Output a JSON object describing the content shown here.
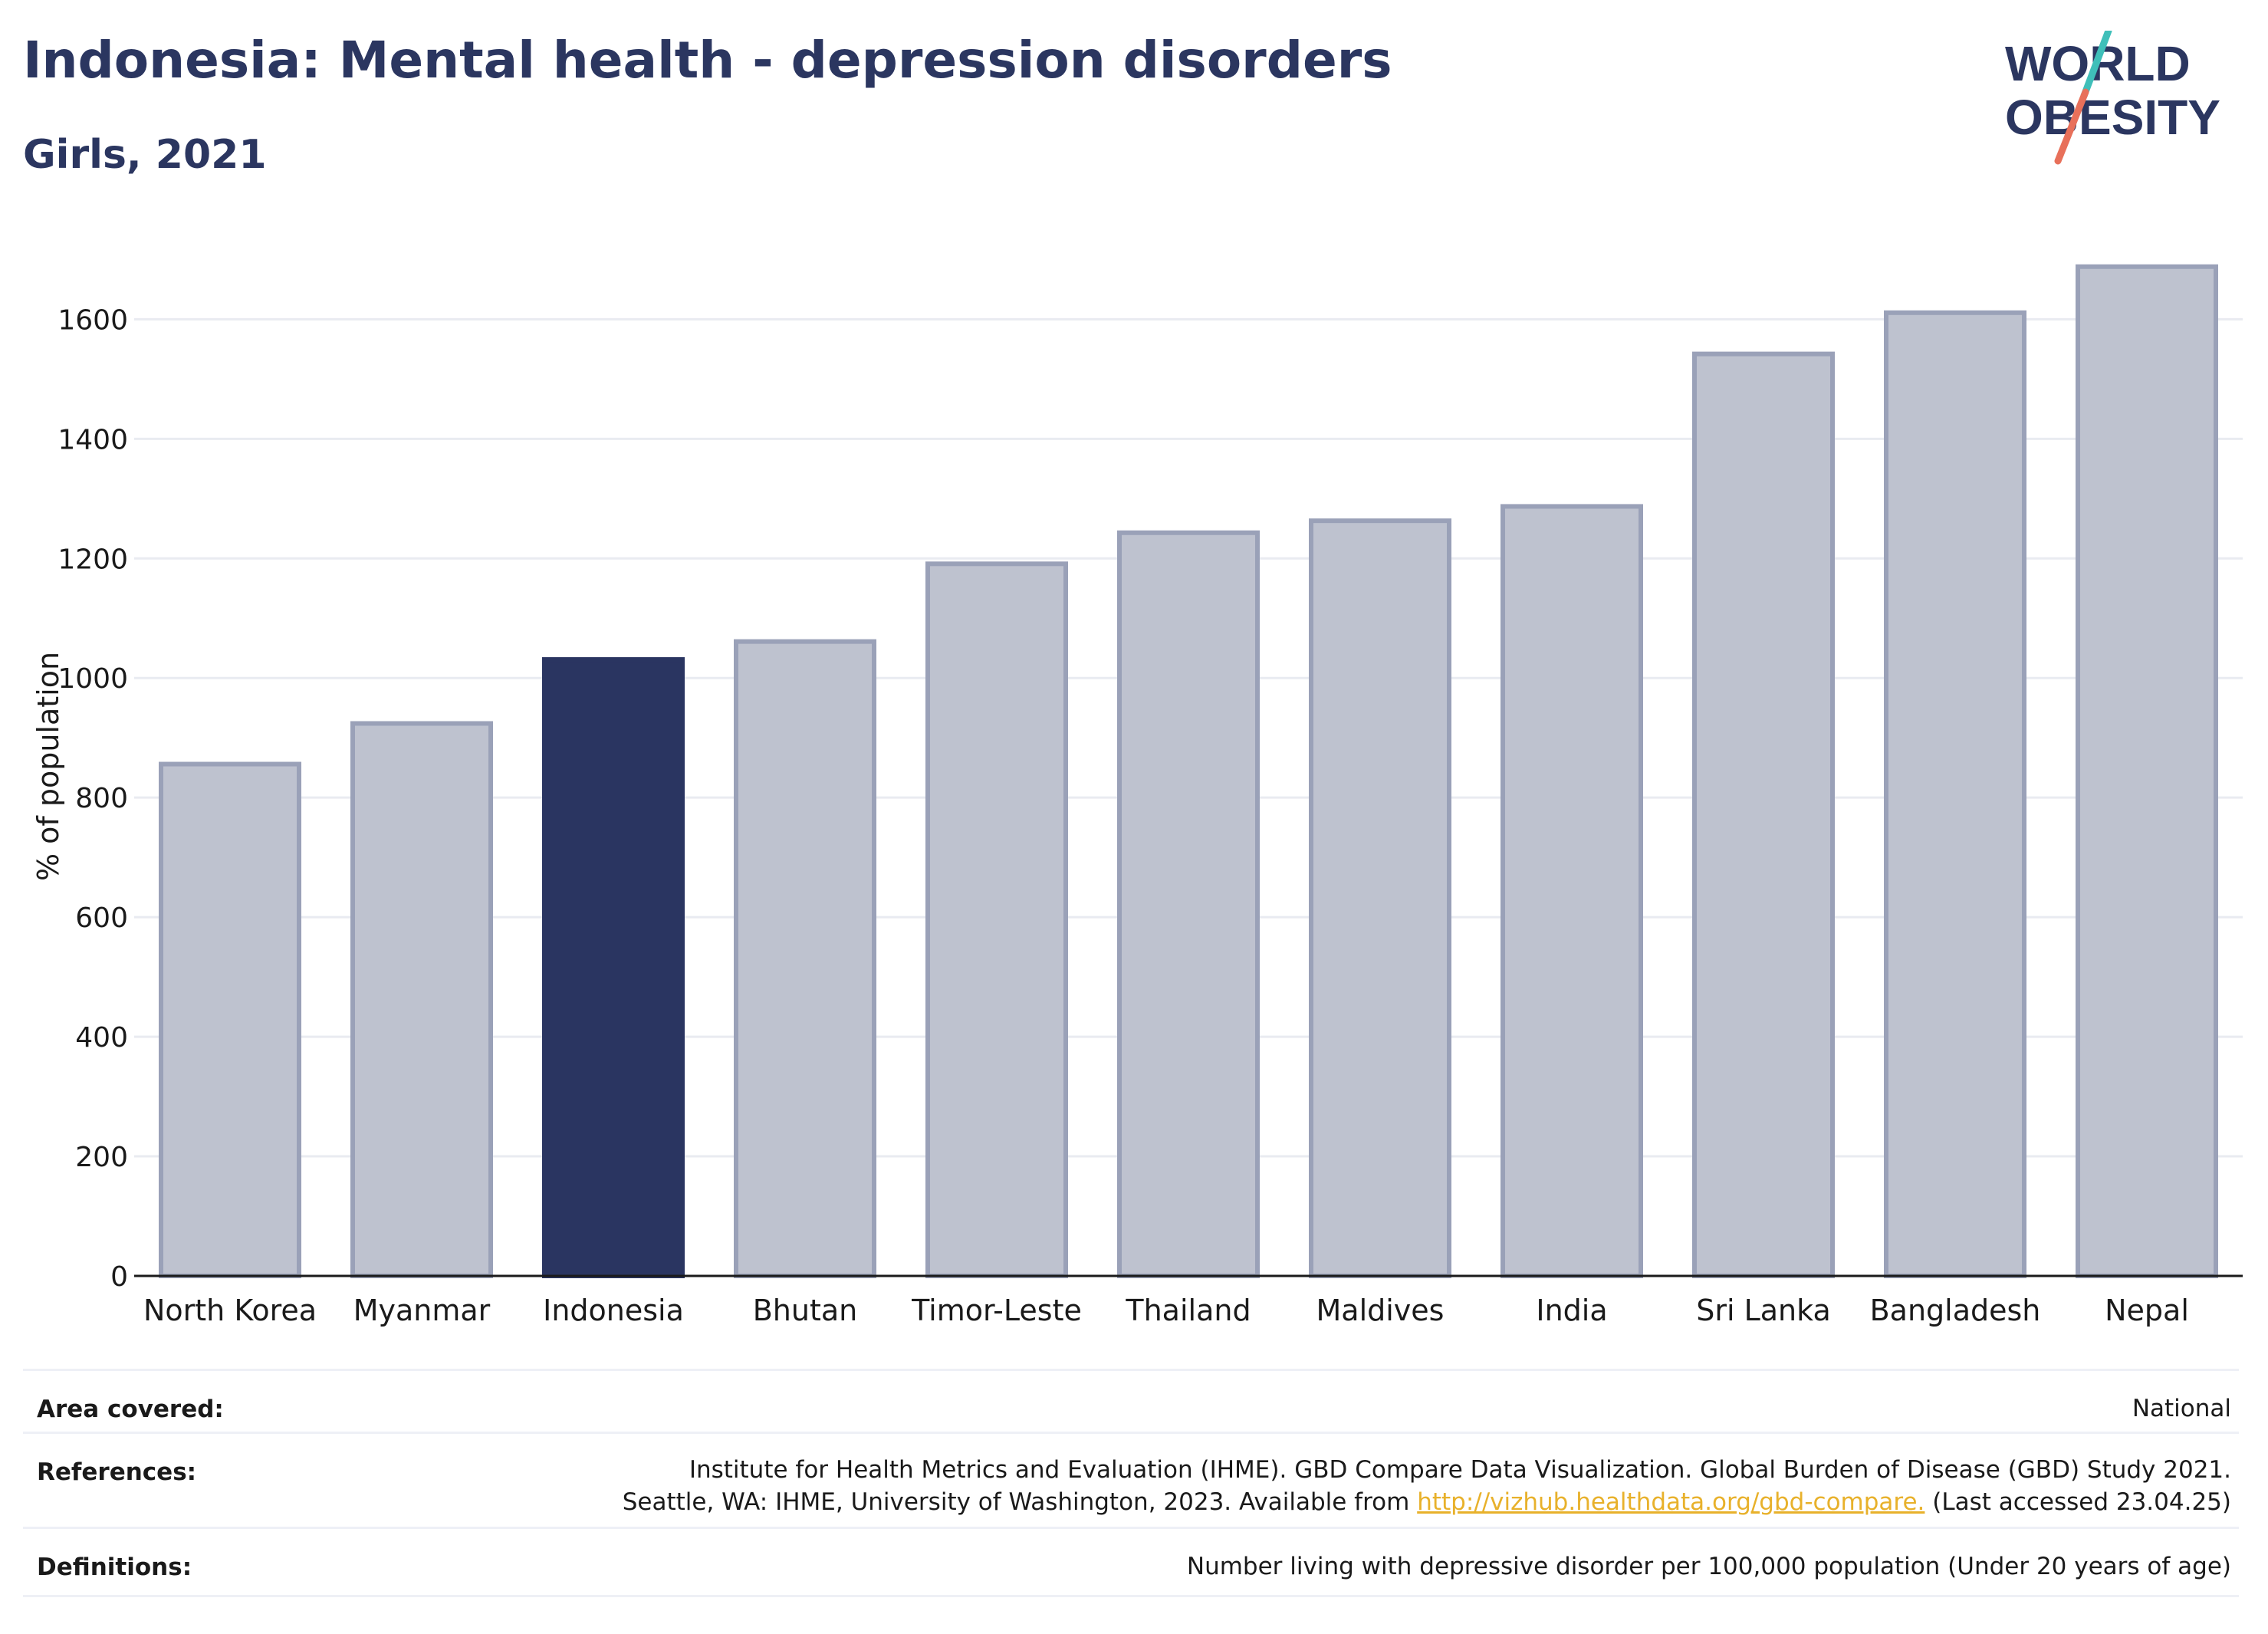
{
  "header": {
    "title": "Indonesia: Mental health - depression disorders",
    "subtitle": "Girls, 2021"
  },
  "logo": {
    "line1": "WORLD",
    "line2": "OBESITY"
  },
  "colors": {
    "highlight": "#2a3561",
    "bar": "#bec2cf",
    "bar_stroke": "#9aa1b8",
    "grid": "#e9ebf1",
    "text": "#2b3660",
    "logo_teal": "#3fbfb9",
    "logo_red": "#e8705a"
  },
  "chart_data": {
    "type": "bar",
    "ylabel": "% of population",
    "xlabel": "",
    "categories": [
      "North Korea",
      "Myanmar",
      "Indonesia",
      "Bhutan",
      "Timor-Leste",
      "Thailand",
      "Maldives",
      "India",
      "Sri Lanka",
      "Bangladesh",
      "Nepal"
    ],
    "values": [
      856,
      924,
      1031,
      1061,
      1191,
      1243,
      1263,
      1287,
      1542,
      1611,
      1688
    ],
    "highlight": "Indonesia",
    "yticks": [
      0,
      200,
      400,
      600,
      800,
      1000,
      1200,
      1400,
      1600
    ],
    "ylim": [
      0,
      1730
    ],
    "grid": true
  },
  "footer": {
    "area_label": "Area covered:",
    "area_value": "National",
    "references_label": "References:",
    "references_line1": "Institute for Health Metrics and Evaluation (IHME). GBD Compare Data Visualization. Global Burden of Disease (GBD) Study 2021.",
    "references_line2_pre": "Seattle, WA: IHME, University of Washington, 2023. Available from ",
    "references_link": "http://vizhub.healthdata.org/gbd-compare.",
    "references_line2_post": " (Last accessed 23.04.25)",
    "definitions_label": "Definitions:",
    "definitions_value": "Number living with depressive disorder per 100,000 population (Under 20 years of age)"
  }
}
